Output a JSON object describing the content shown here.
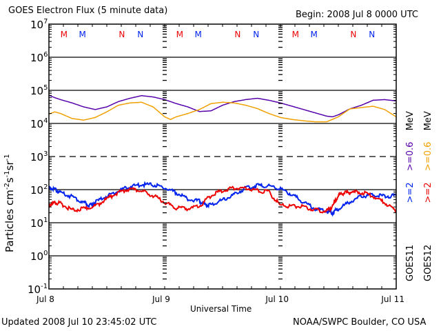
{
  "header": {
    "title": "GOES Electron Flux (5 minute data)",
    "begin": "Begin: 2008 Jul 8 0000 UTC"
  },
  "footer": {
    "updated": "Updated 2008 Jul 10 23:45:02 UTC",
    "credit": "NOAA/SWPC Boulder, CO USA"
  },
  "legend": {
    "goes11": {
      "sat": "GOES11",
      "e2": ">=2",
      "e06": ">=0.6",
      "unit": "MeV"
    },
    "goes12": {
      "sat": "GOES12",
      "e2": ">=2",
      "e06": ">=0.6",
      "unit": "MeV"
    }
  },
  "colors": {
    "goes11_e2": "#0022ee",
    "goes11_e06": "#5500aa",
    "goes12_e2": "#ee0000",
    "goes12_e06": "#f0a000",
    "axis": "#000000"
  },
  "chart_data": {
    "type": "line",
    "title": "GOES Electron Flux (5 minute data)",
    "xlabel": "Universal Time",
    "ylabel": "Particles cm-2s-1sr-1",
    "ylabel_parts": {
      "base": "Particles cm",
      "e1": "-2",
      "mid": "s",
      "e2": "-1",
      "mid2": "sr",
      "e3": "-1"
    },
    "yscale": "log",
    "ylim_exp": [
      -1,
      7
    ],
    "ytick_exps": [
      7,
      6,
      5,
      4,
      3,
      2,
      1,
      0,
      -1
    ],
    "xlim_days": [
      0,
      3
    ],
    "xticks": [
      {
        "day": 0,
        "label": "Jul 8"
      },
      {
        "day": 1,
        "label": "Jul 9"
      },
      {
        "day": 2,
        "label": "Jul 10"
      },
      {
        "day": 3,
        "label": "Jul 11"
      }
    ],
    "solid_gridlines_exp": [
      6,
      5,
      4,
      2,
      1,
      0
    ],
    "dashed_gridlines_exp": [
      3
    ],
    "noon_midnight_markers": [
      {
        "label": "M",
        "day": 0.13,
        "color": "#ee0000"
      },
      {
        "label": "M",
        "day": 0.29,
        "color": "#0022ee"
      },
      {
        "label": "N",
        "day": 0.63,
        "color": "#ee0000"
      },
      {
        "label": "N",
        "day": 0.79,
        "color": "#0022ee"
      },
      {
        "label": "M",
        "day": 1.13,
        "color": "#ee0000"
      },
      {
        "label": "M",
        "day": 1.29,
        "color": "#0022ee"
      },
      {
        "label": "N",
        "day": 1.63,
        "color": "#ee0000"
      },
      {
        "label": "N",
        "day": 1.79,
        "color": "#0022ee"
      },
      {
        "label": "M",
        "day": 2.13,
        "color": "#ee0000"
      },
      {
        "label": "M",
        "day": 2.29,
        "color": "#0022ee"
      },
      {
        "label": "N",
        "day": 2.63,
        "color": "#ee0000"
      },
      {
        "label": "N",
        "day": 2.79,
        "color": "#0022ee"
      }
    ],
    "series": [
      {
        "name": "GOES11 >=0.6 MeV",
        "color": "#5500aa",
        "x_days": [
          0,
          0.05,
          0.1,
          0.2,
          0.3,
          0.4,
          0.5,
          0.6,
          0.7,
          0.8,
          0.9,
          1.0,
          1.1,
          1.2,
          1.3,
          1.4,
          1.5,
          1.6,
          1.7,
          1.8,
          1.9,
          2.0,
          2.1,
          2.2,
          2.3,
          2.4,
          2.45,
          2.5,
          2.6,
          2.7,
          2.8,
          2.9,
          3.0
        ],
        "y_exp": [
          4.85,
          4.78,
          4.72,
          4.62,
          4.5,
          4.42,
          4.5,
          4.66,
          4.76,
          4.84,
          4.8,
          4.72,
          4.6,
          4.5,
          4.36,
          4.38,
          4.55,
          4.66,
          4.72,
          4.76,
          4.7,
          4.62,
          4.52,
          4.42,
          4.32,
          4.22,
          4.2,
          4.26,
          4.44,
          4.55,
          4.7,
          4.72,
          4.68
        ]
      },
      {
        "name": "GOES12 >=0.6 MeV",
        "color": "#f0a000",
        "x_days": [
          0,
          0.05,
          0.1,
          0.2,
          0.3,
          0.4,
          0.5,
          0.6,
          0.7,
          0.8,
          0.9,
          1.0,
          1.05,
          1.1,
          1.2,
          1.3,
          1.4,
          1.5,
          1.6,
          1.7,
          1.8,
          1.9,
          2.0,
          2.1,
          2.2,
          2.3,
          2.4,
          2.5,
          2.6,
          2.7,
          2.8,
          2.9,
          3.0
        ],
        "y_exp": [
          4.28,
          4.35,
          4.3,
          4.15,
          4.1,
          4.18,
          4.35,
          4.55,
          4.62,
          4.64,
          4.5,
          4.2,
          4.12,
          4.2,
          4.3,
          4.42,
          4.6,
          4.64,
          4.62,
          4.55,
          4.45,
          4.3,
          4.18,
          4.12,
          4.08,
          4.05,
          4.05,
          4.2,
          4.44,
          4.48,
          4.52,
          4.42,
          4.2
        ]
      },
      {
        "name": "GOES11 >=2 MeV",
        "color": "#0022ee",
        "x_days": [
          0,
          0.05,
          0.1,
          0.2,
          0.3,
          0.35,
          0.4,
          0.5,
          0.6,
          0.7,
          0.8,
          0.9,
          1.0,
          1.1,
          1.2,
          1.3,
          1.35,
          1.4,
          1.5,
          1.6,
          1.7,
          1.8,
          1.9,
          2.0,
          2.1,
          2.2,
          2.3,
          2.4,
          2.45,
          2.5,
          2.6,
          2.7,
          2.8,
          2.9,
          3.0
        ],
        "y_exp": [
          2.08,
          2.0,
          1.92,
          1.78,
          1.62,
          1.5,
          1.62,
          1.8,
          1.95,
          2.1,
          2.15,
          2.15,
          2.05,
          1.9,
          1.72,
          1.65,
          1.55,
          1.55,
          1.68,
          1.85,
          2.05,
          2.12,
          2.12,
          2.02,
          1.85,
          1.62,
          1.42,
          1.35,
          1.3,
          1.42,
          1.62,
          1.8,
          1.85,
          1.8,
          1.82
        ]
      },
      {
        "name": "GOES12 >=2 MeV",
        "color": "#ee0000",
        "x_days": [
          0,
          0.05,
          0.1,
          0.2,
          0.3,
          0.4,
          0.5,
          0.6,
          0.7,
          0.8,
          0.9,
          1.0,
          1.1,
          1.2,
          1.3,
          1.4,
          1.5,
          1.6,
          1.7,
          1.8,
          1.9,
          2.0,
          2.1,
          2.2,
          2.3,
          2.4,
          2.45,
          2.5,
          2.55,
          2.6,
          2.7,
          2.8,
          2.9,
          3.0
        ],
        "y_exp": [
          1.55,
          1.6,
          1.58,
          1.38,
          1.42,
          1.5,
          1.72,
          1.92,
          2.02,
          1.95,
          1.82,
          1.62,
          1.45,
          1.42,
          1.5,
          1.82,
          1.98,
          2.05,
          2.05,
          1.98,
          1.92,
          1.52,
          1.5,
          1.48,
          1.38,
          1.35,
          1.5,
          1.82,
          1.9,
          1.92,
          1.92,
          1.8,
          1.6,
          1.35
        ]
      }
    ]
  }
}
